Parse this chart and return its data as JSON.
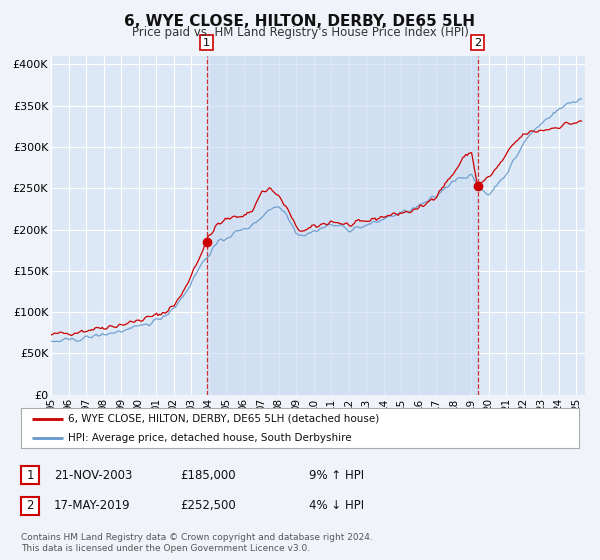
{
  "title": "6, WYE CLOSE, HILTON, DERBY, DE65 5LH",
  "subtitle": "Price paid vs. HM Land Registry's House Price Index (HPI)",
  "bg_color": "#f0f4fa",
  "plot_bg_color": "#dce8f5",
  "shade_color": "#c8daf0",
  "grid_color": "#ffffff",
  "red_line_color": "#cc0000",
  "blue_line_color": "#6699cc",
  "sale1_date_num": 2003.89,
  "sale1_price": 185000,
  "sale1_label": "21-NOV-2003",
  "sale1_pct": "9% ↑ HPI",
  "sale2_date_num": 2019.37,
  "sale2_price": 252500,
  "sale2_label": "17-MAY-2019",
  "sale2_pct": "4% ↓ HPI",
  "xmin": 1995,
  "xmax": 2025.5,
  "ymin": 0,
  "ymax": 410000,
  "yticks": [
    0,
    50000,
    100000,
    150000,
    200000,
    250000,
    300000,
    350000,
    400000
  ],
  "ytick_labels": [
    "£0",
    "£50K",
    "£100K",
    "£150K",
    "£200K",
    "£250K",
    "£300K",
    "£350K",
    "£400K"
  ],
  "xticks": [
    1995,
    1996,
    1997,
    1998,
    1999,
    2000,
    2001,
    2002,
    2003,
    2004,
    2005,
    2006,
    2007,
    2008,
    2009,
    2010,
    2011,
    2012,
    2013,
    2014,
    2015,
    2016,
    2017,
    2018,
    2019,
    2020,
    2021,
    2022,
    2023,
    2024,
    2025
  ],
  "xtick_labels": [
    "95",
    "96",
    "97",
    "98",
    "99",
    "00",
    "01",
    "02",
    "03",
    "04",
    "05",
    "06",
    "07",
    "08",
    "09",
    "10",
    "11",
    "12",
    "13",
    "14",
    "15",
    "16",
    "17",
    "18",
    "19",
    "20",
    "21",
    "22",
    "23",
    "24",
    "25"
  ],
  "legend1_label": "6, WYE CLOSE, HILTON, DERBY, DE65 5LH (detached house)",
  "legend2_label": "HPI: Average price, detached house, South Derbyshire",
  "footer1": "Contains HM Land Registry data © Crown copyright and database right 2024.",
  "footer2": "This data is licensed under the Open Government Licence v3.0."
}
